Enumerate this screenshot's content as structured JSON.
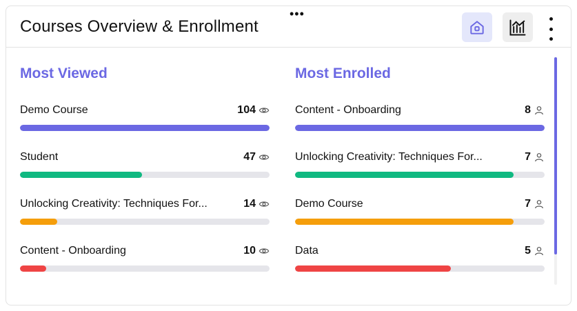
{
  "header": {
    "title": "Courses Overview & Enrollment",
    "drag_handle_icon": "horizontal-dots-icon",
    "home_button_icon": "home-icon",
    "chart_button_icon": "bar-chart-icon",
    "menu_icon": "vertical-kebab-icon"
  },
  "colors": {
    "accent": "#6b68e3",
    "green": "#10b981",
    "orange": "#f59e0b",
    "red": "#ef4444",
    "track": "#e5e5ea"
  },
  "most_viewed": {
    "title": "Most Viewed",
    "metric_icon": "eye-icon",
    "items": [
      {
        "label": "Demo Course",
        "value": "104",
        "fraction": 1.0,
        "color": "#6b68e3"
      },
      {
        "label": "Student",
        "value": "47",
        "fraction": 0.49,
        "color": "#10b981"
      },
      {
        "label": "Unlocking Creativity: Techniques For...",
        "value": "14",
        "fraction": 0.15,
        "color": "#f59e0b"
      },
      {
        "label": "Content - Onboarding",
        "value": "10",
        "fraction": 0.105,
        "color": "#ef4444"
      }
    ]
  },
  "most_enrolled": {
    "title": "Most Enrolled",
    "metric_icon": "user-icon",
    "items": [
      {
        "label": "Content - Onboarding",
        "value": "8",
        "fraction": 1.0,
        "color": "#6b68e3"
      },
      {
        "label": "Unlocking Creativity: Techniques For...",
        "value": "7",
        "fraction": 0.875,
        "color": "#10b981"
      },
      {
        "label": "Demo Course",
        "value": "7",
        "fraction": 0.875,
        "color": "#f59e0b"
      },
      {
        "label": "Data",
        "value": "5",
        "fraction": 0.625,
        "color": "#ef4444"
      }
    ]
  }
}
